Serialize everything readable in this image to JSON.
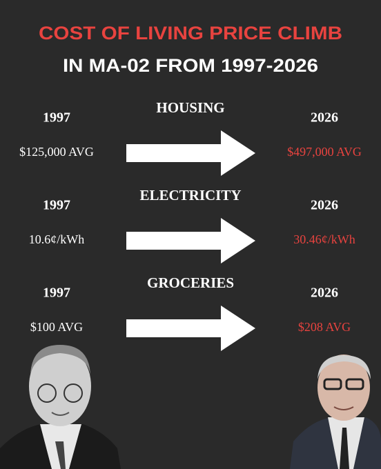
{
  "title": {
    "line1": "COST OF LIVING PRICE CLIMB",
    "line2": "IN MA-02 FROM 1997-2026"
  },
  "rows": [
    {
      "label": "HOUSING",
      "start_year": "1997",
      "start_value": "$125,000 AVG",
      "end_year": "2026",
      "end_value": "$497,000 AVG"
    },
    {
      "label": "ELECTRICITY",
      "start_year": "1997",
      "start_value": "10.6¢/kWh",
      "end_year": "2026",
      "end_value": "30.46¢/kWh"
    },
    {
      "label": "GROCERIES",
      "start_year": "1997",
      "start_value": "$100 AVG",
      "end_year": "2026",
      "end_value": "$208 AVG"
    }
  ]
}
